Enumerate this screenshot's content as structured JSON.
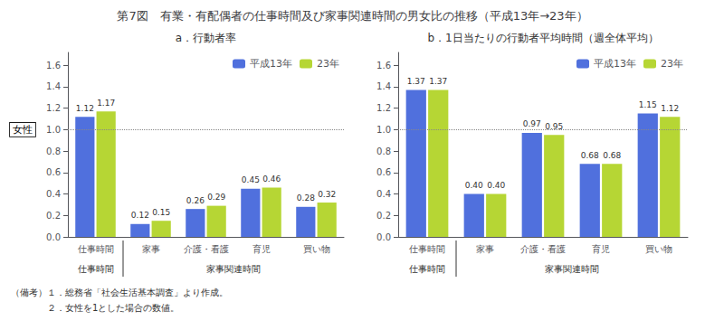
{
  "chart_data": [
    {
      "type": "bar",
      "title": "第7図　有業・有配偶者の仕事時間及び家事関連時間の男女比の推移（平成13年→23年）",
      "subtitle": "a．行動者率",
      "categories": [
        "仕事時間",
        "家事",
        "介護・看護",
        "育児",
        "買い物"
      ],
      "groups": [
        {
          "label": "仕事時間",
          "categories": [
            "仕事時間"
          ]
        },
        {
          "label": "家事関連時間",
          "categories": [
            "家事",
            "介護・看護",
            "育児",
            "買い物"
          ]
        }
      ],
      "series": [
        {
          "name": "平成13年",
          "values": [
            1.12,
            0.12,
            0.26,
            0.45,
            0.28
          ],
          "value_labels": [
            "1.12",
            "0.12",
            "0.26",
            "0.45",
            "0.28"
          ]
        },
        {
          "name": "23年",
          "values": [
            1.17,
            0.15,
            0.29,
            0.46,
            0.32
          ],
          "value_labels": [
            "1.17",
            "0.15",
            "0.29",
            "0.46",
            "0.32"
          ]
        }
      ],
      "reference_line": {
        "y": 1.0,
        "label": "女性",
        "line_style": "dotted"
      },
      "ylim": [
        0,
        1.72
      ],
      "yticks": [
        {
          "value": 0,
          "label": "0.0"
        },
        0.2,
        0.4,
        0.6,
        0.8,
        {
          "value": 1,
          "label": "1.0"
        },
        1.2,
        1.4,
        1.6
      ],
      "grid": false,
      "legend": "upper right",
      "data_labels": true,
      "annotations": [
        "（備考）１．総務省「社会生活基本調査」より作成。",
        "　　　　２．女性を1とした場合の数値。"
      ]
    },
    {
      "type": "bar",
      "subtitle": "b．1日当たりの行動者平均時間（週全体平均）",
      "categories": [
        "仕事時間",
        "家事",
        "介護・看護",
        "育児",
        "買い物"
      ],
      "groups": [
        {
          "label": "仕事時間",
          "categories": [
            "仕事時間"
          ]
        },
        {
          "label": "家事関連時間",
          "categories": [
            "家事",
            "介護・看護",
            "育児",
            "買い物"
          ]
        }
      ],
      "series": [
        {
          "name": "平成13年",
          "values": [
            1.37,
            0.4,
            0.97,
            0.68,
            1.15
          ],
          "value_labels": [
            "1.37",
            "0.40",
            "0.97",
            "0.68",
            "1.15"
          ]
        },
        {
          "name": "23年",
          "values": [
            1.37,
            0.4,
            0.95,
            0.68,
            1.12
          ],
          "value_labels": [
            "1.37",
            "0.40",
            "0.95",
            "0.68",
            "1.12"
          ]
        }
      ],
      "reference_line": {
        "y": 1.0,
        "line_style": "dotted"
      },
      "ylim": [
        0,
        1.72
      ],
      "yticks": [
        {
          "value": 0,
          "label": "0.0"
        },
        0.2,
        0.4,
        0.6,
        0.8,
        {
          "value": 1,
          "label": "1.0"
        },
        1.2,
        1.4,
        1.6
      ],
      "grid": false,
      "legend": "upper right",
      "data_labels": true
    }
  ]
}
